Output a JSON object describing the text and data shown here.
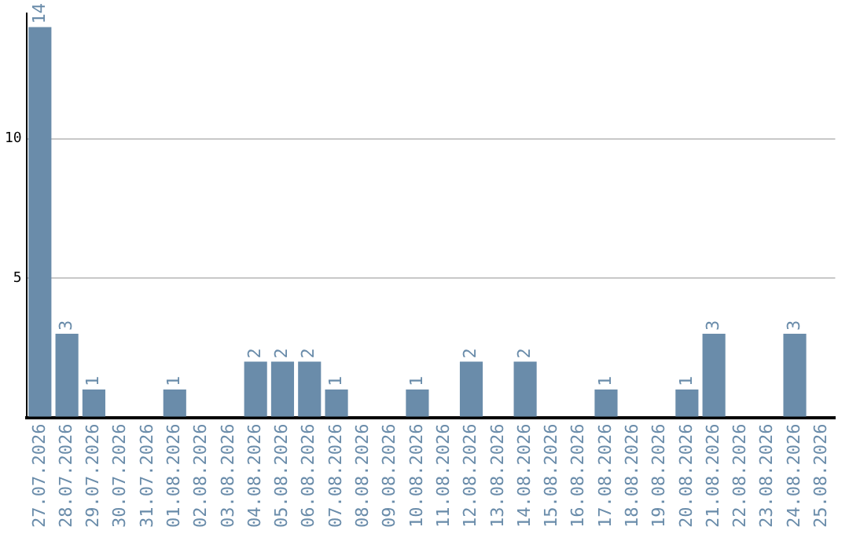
{
  "chart_data": {
    "type": "bar",
    "categories": [
      "27.07.2026",
      "28.07.2026",
      "29.07.2026",
      "30.07.2026",
      "31.07.2026",
      "01.08.2026",
      "02.08.2026",
      "03.08.2026",
      "04.08.2026",
      "05.08.2026",
      "06.08.2026",
      "07.08.2026",
      "08.08.2026",
      "09.08.2026",
      "10.08.2026",
      "11.08.2026",
      "12.08.2026",
      "13.08.2026",
      "14.08.2026",
      "15.08.2026",
      "16.08.2026",
      "17.08.2026",
      "18.08.2026",
      "19.08.2026",
      "20.08.2026",
      "21.08.2026",
      "22.08.2026",
      "23.08.2026",
      "24.08.2026",
      "25.08.2026"
    ],
    "values": [
      14,
      3,
      1,
      0,
      0,
      1,
      0,
      0,
      2,
      2,
      2,
      1,
      0,
      0,
      1,
      0,
      2,
      0,
      2,
      0,
      0,
      1,
      0,
      0,
      1,
      3,
      0,
      0,
      3,
      0
    ],
    "value_labels": [
      "14",
      "3",
      "1",
      null,
      null,
      "1",
      null,
      null,
      "2",
      "2",
      "2",
      "1",
      null,
      null,
      "1",
      null,
      "2",
      null,
      "2",
      null,
      null,
      "1",
      null,
      null,
      "1",
      "3",
      null,
      null,
      "3",
      null
    ],
    "color": "#6a8caa",
    "ylim": [
      0,
      14.5
    ],
    "yticks": [
      {
        "value": 0,
        "label": null
      },
      5,
      10
    ],
    "grid": "y",
    "legend": false
  }
}
